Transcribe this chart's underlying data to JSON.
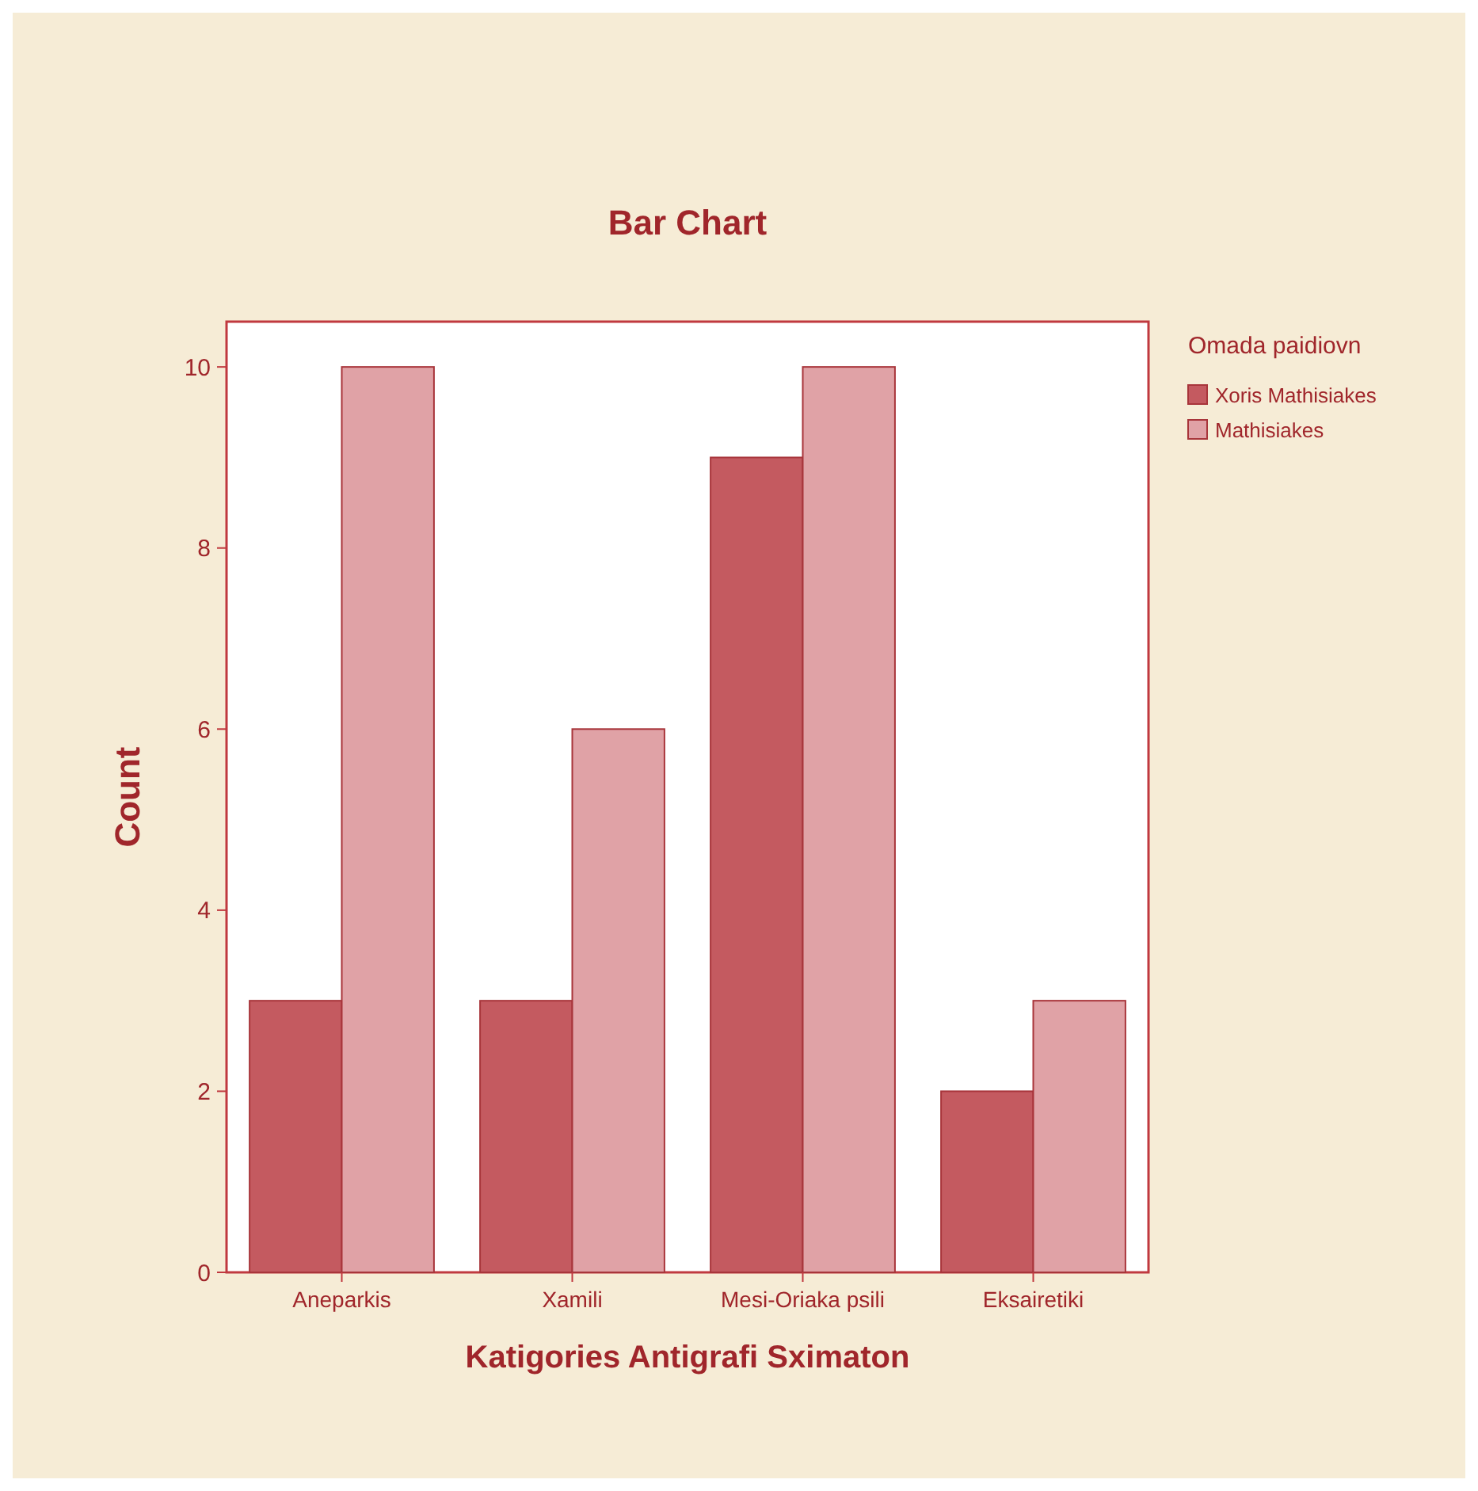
{
  "chart_data": {
    "type": "bar",
    "title": "Bar Chart",
    "xlabel": "Katigories Antigrafi Sximaton",
    "ylabel": "Count",
    "legend_title": "Omada paidiovn",
    "categories": [
      "Aneparkis",
      "Xamili",
      "Mesi-Oriaka psili",
      "Eksairetiki"
    ],
    "series": [
      {
        "name": "Xoris Mathisiakes",
        "color": "#c45a60",
        "values": [
          3,
          3,
          9,
          2
        ]
      },
      {
        "name": "Mathisiakes",
        "color": "#e0a2a6",
        "values": [
          10,
          6,
          10,
          3
        ]
      }
    ],
    "ylim": [
      0,
      10.5
    ],
    "yticks": [
      0,
      2,
      4,
      6,
      8,
      10
    ],
    "grid": false,
    "legend": "right"
  }
}
